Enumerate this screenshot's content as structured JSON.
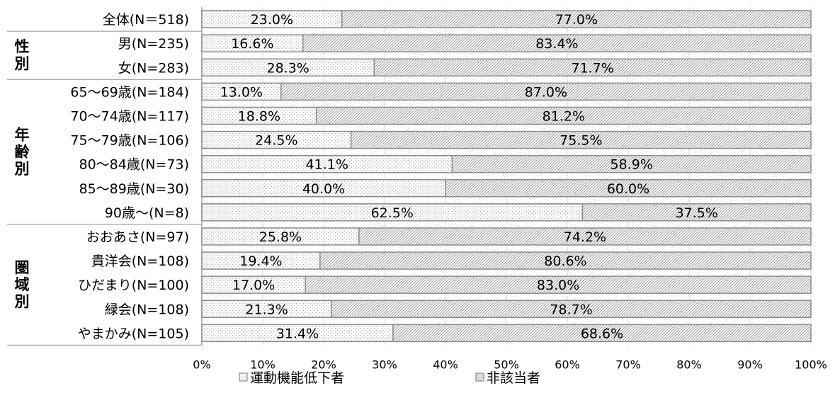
{
  "chart_data": {
    "type": "bar",
    "orientation": "horizontal",
    "stacked": true,
    "normalized": true,
    "groups": [
      {
        "label": "",
        "categories": [
          "全体(N＝518)"
        ]
      },
      {
        "label": "性別",
        "categories": [
          "男(N=235)",
          "女(N=283)"
        ]
      },
      {
        "label": "年齢別",
        "categories": [
          "65～69歳(N=184)",
          "70～74歳(N=117)",
          "75～79歳(N=106)",
          "80～84歳(N=73)",
          "85～89歳(N=30)",
          "90歳～(N=8)"
        ]
      },
      {
        "label": "圏域別",
        "categories": [
          "おおあさ(N=97)",
          "貴洋会(N=108)",
          "ひだまり(N=100)",
          "緑会(N=108)",
          "やまかみ(N=105)"
        ]
      }
    ],
    "categories": [
      "全体(N＝518)",
      "男(N=235)",
      "女(N=283)",
      "65～69歳(N=184)",
      "70～74歳(N=117)",
      "75～79歳(N=106)",
      "80～84歳(N=73)",
      "85～89歳(N=30)",
      "90歳～(N=8)",
      "おおあさ(N=97)",
      "貴洋会(N=108)",
      "ひだまり(N=100)",
      "緑会(N=108)",
      "やまかみ(N=105)"
    ],
    "series": [
      {
        "name": "運動機能低下者",
        "pattern": "dots",
        "values": [
          23.0,
          16.6,
          28.3,
          13.0,
          18.8,
          24.5,
          41.1,
          40.0,
          62.5,
          25.8,
          19.4,
          17.0,
          21.3,
          31.4
        ]
      },
      {
        "name": "非該当者",
        "pattern": "diagonal-hatch",
        "values": [
          77.0,
          83.4,
          71.7,
          87.0,
          81.2,
          75.5,
          58.9,
          60.0,
          37.5,
          74.2,
          80.6,
          83.0,
          78.7,
          68.6
        ]
      }
    ],
    "value_format": "0.0%",
    "xlim": [
      0,
      100
    ],
    "xticks": [
      "0%",
      "10%",
      "20%",
      "30%",
      "40%",
      "50%",
      "60%",
      "70%",
      "80%",
      "90%",
      "100%"
    ],
    "grid": true,
    "legend_position": "bottom",
    "colors": {
      "bar_stroke": "#8c8c8c",
      "dots": "#9a9a9a",
      "hatch": "#8c8c8c",
      "grid": "#d9d9d9",
      "axis": "#8c8c8c"
    }
  }
}
